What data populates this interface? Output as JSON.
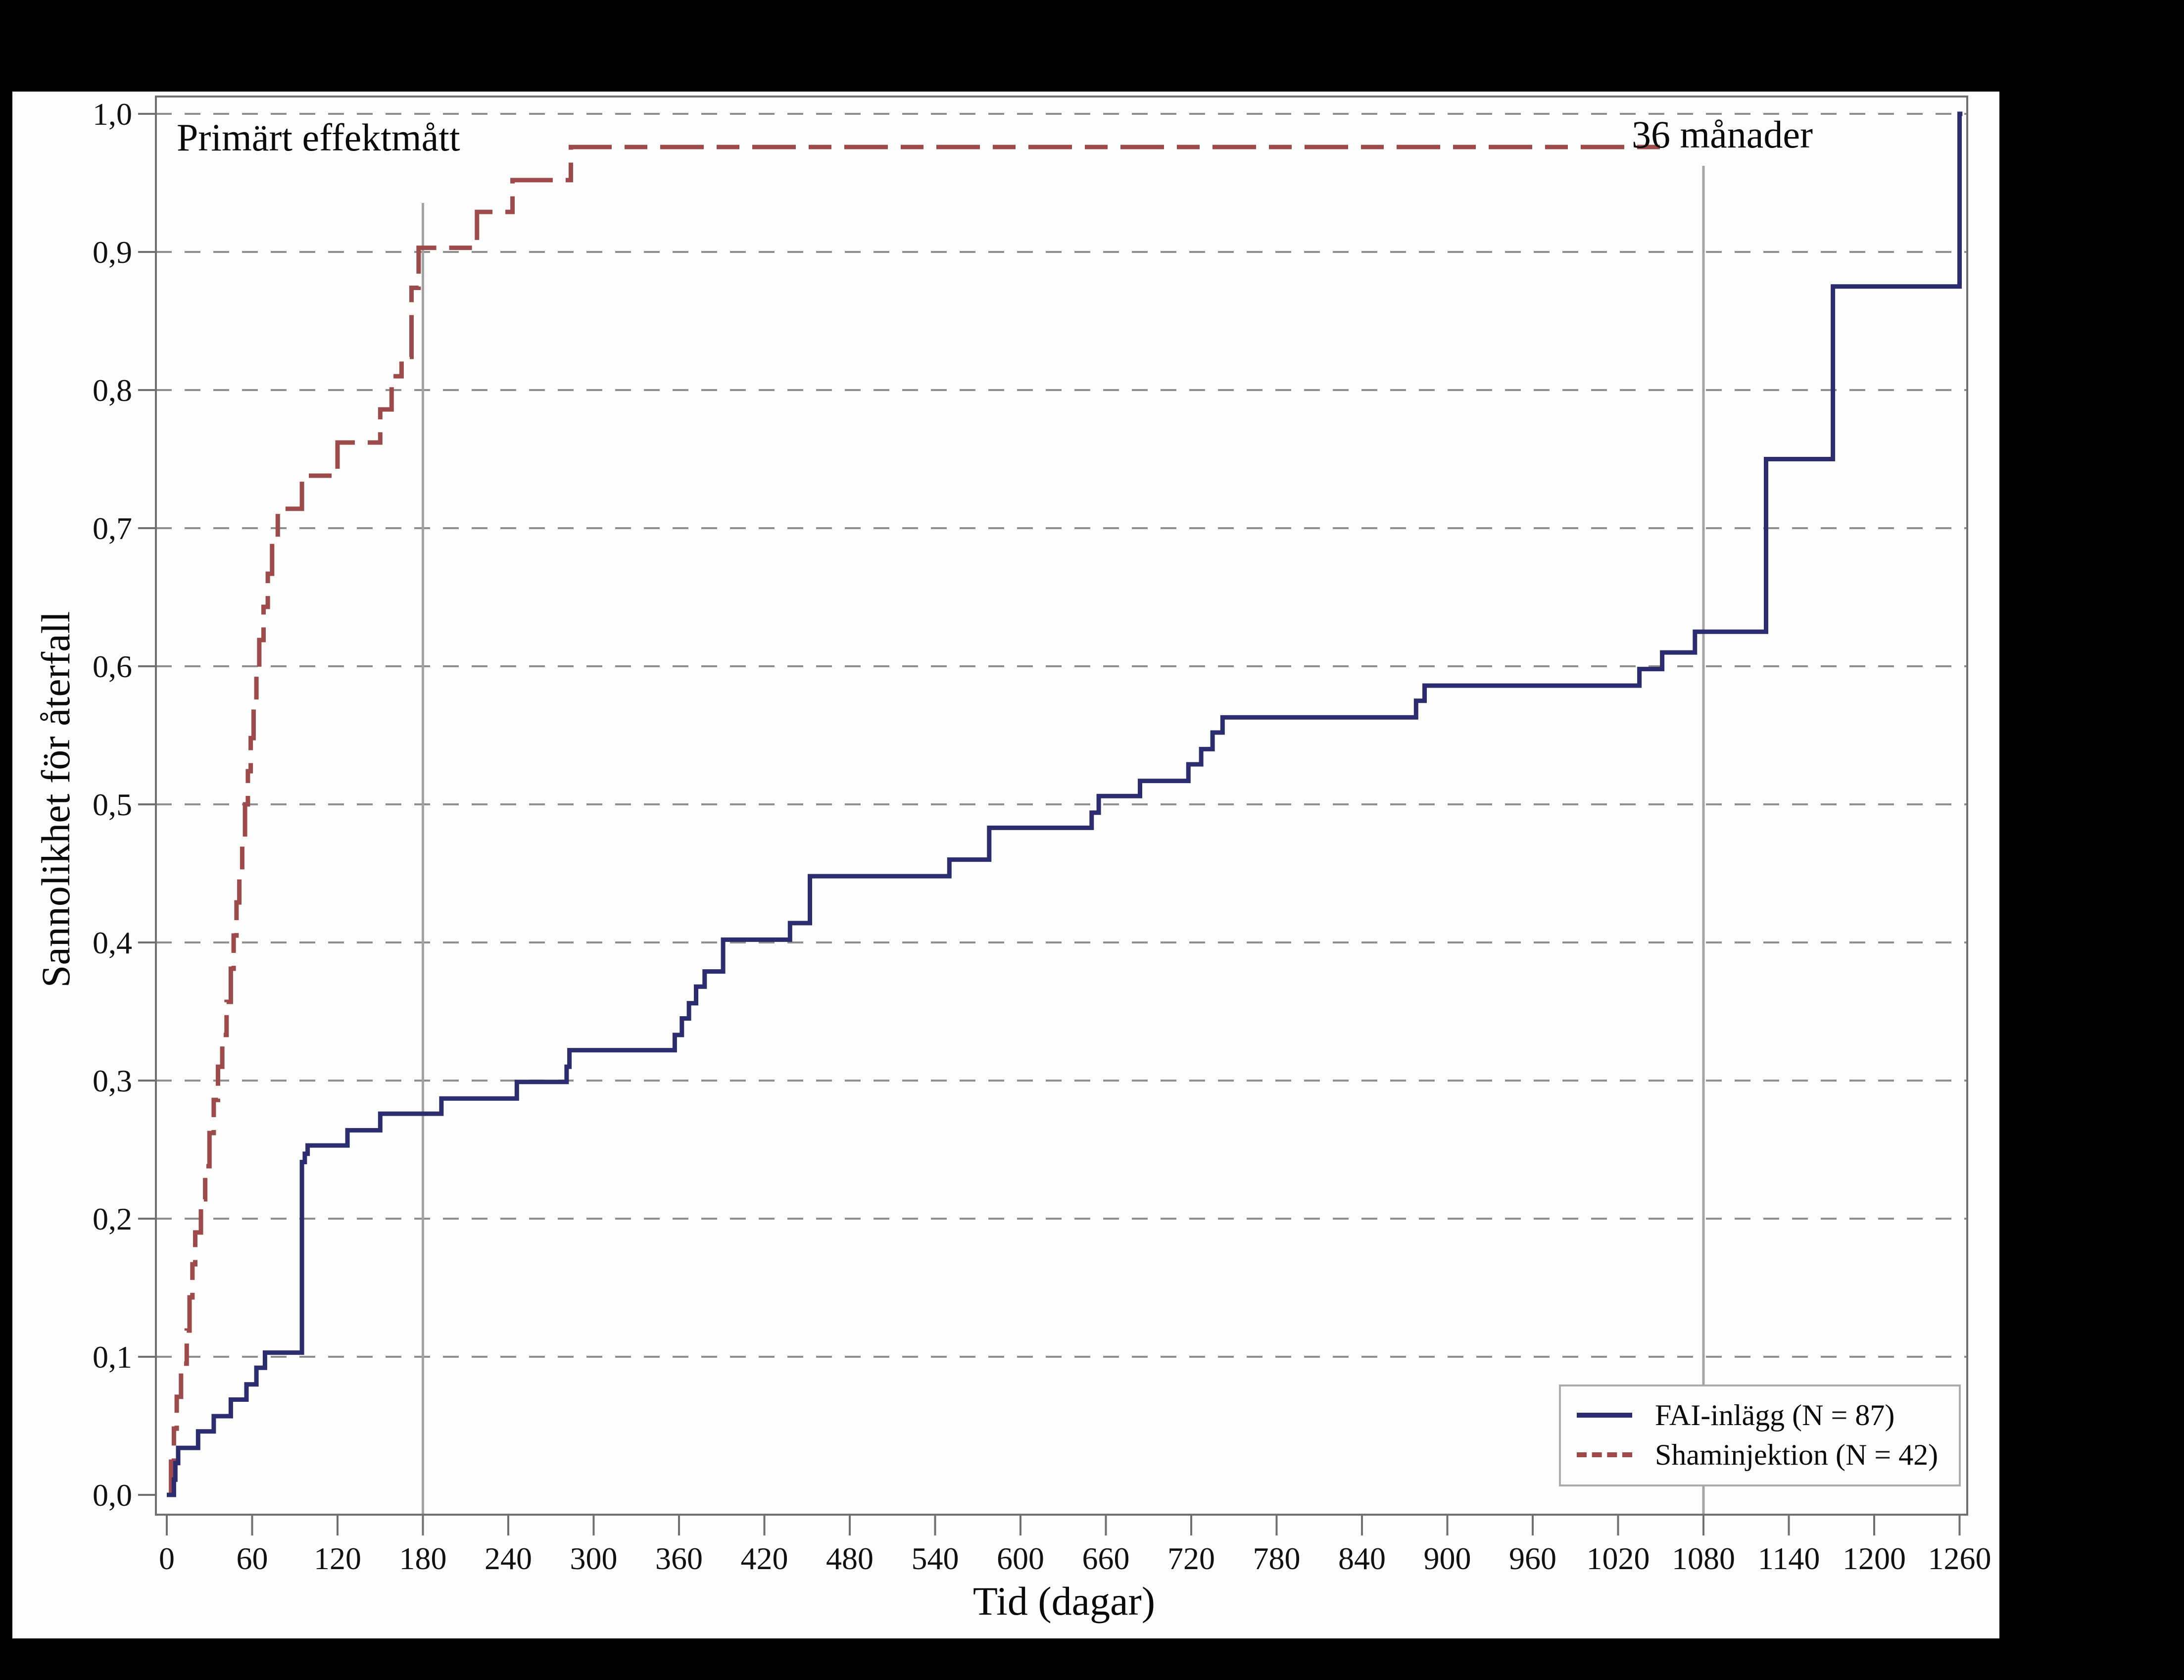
{
  "page": {
    "background": "#000000",
    "panel_background": "#fdfdfd"
  },
  "annotations": {
    "top_left": "Primärt effektmått",
    "top_right": "36 månader"
  },
  "axes": {
    "x": {
      "label": "Tid (dagar)",
      "range": [
        0,
        1260
      ],
      "ticks": [
        0,
        60,
        120,
        180,
        240,
        300,
        360,
        420,
        480,
        540,
        600,
        660,
        720,
        780,
        840,
        900,
        960,
        1020,
        1080,
        1140,
        1200,
        1260
      ]
    },
    "y": {
      "label": "Sannolikhet för återfall",
      "range": [
        0,
        1
      ],
      "tick_values": [
        0,
        0.1,
        0.2,
        0.3,
        0.4,
        0.5,
        0.6,
        0.7,
        0.8,
        0.9,
        1.0
      ],
      "tick_labels": [
        "0,0",
        "0,1",
        "0,2",
        "0,3",
        "0,4",
        "0,5",
        "0,6",
        "0,7",
        "0,8",
        "0,9",
        "1,0"
      ]
    }
  },
  "legend": {
    "items": [
      {
        "label": "FAI-inlägg (N = 87)",
        "color": "#2b2d6e",
        "style": "solid"
      },
      {
        "label": "Shaminjektion (N = 42)",
        "color": "#9d4a4a",
        "style": "dashed"
      }
    ]
  },
  "colors": {
    "fai_curve": "#2b2d6e",
    "sham_curve": "#9d4a4a",
    "gridline": "#8f8f8f",
    "reference_line": "#a3a3a3",
    "frame": "#707070",
    "text": "#111111"
  },
  "chart_data": {
    "type": "line",
    "subtype": "kaplan-meier-step-cumulative-incidence",
    "title": "Primärt effektmått",
    "xlabel": "Tid (dagar)",
    "ylabel": "Sannolikhet för återfall",
    "xlim": [
      0,
      1260
    ],
    "ylim": [
      0,
      1.0
    ],
    "grid": "horizontal-dashed-every-0.1",
    "legend_position": "lower-right",
    "reference_lines": [
      {
        "axis": "x",
        "value": 180,
        "style": "solid-gray"
      },
      {
        "axis": "x",
        "value": 1080,
        "style": "solid-gray",
        "annotation": "36 månader"
      }
    ],
    "series": [
      {
        "name": "Shaminjektion (N = 42)",
        "color": "#9d4a4a",
        "line_style": "dashed",
        "end_day": 1055,
        "points": [
          [
            0,
            0
          ],
          [
            3,
            0.024
          ],
          [
            5,
            0.048
          ],
          [
            7,
            0.071
          ],
          [
            10,
            0.095
          ],
          [
            14,
            0.119
          ],
          [
            16,
            0.143
          ],
          [
            18,
            0.167
          ],
          [
            20,
            0.19
          ],
          [
            24,
            0.214
          ],
          [
            27,
            0.238
          ],
          [
            30,
            0.262
          ],
          [
            33,
            0.286
          ],
          [
            36,
            0.31
          ],
          [
            39,
            0.333
          ],
          [
            42,
            0.357
          ],
          [
            45,
            0.381
          ],
          [
            47,
            0.405
          ],
          [
            49,
            0.429
          ],
          [
            51,
            0.452
          ],
          [
            53,
            0.476
          ],
          [
            55,
            0.5
          ],
          [
            57,
            0.524
          ],
          [
            59,
            0.548
          ],
          [
            61,
            0.571
          ],
          [
            63,
            0.595
          ],
          [
            65,
            0.619
          ],
          [
            68,
            0.643
          ],
          [
            71,
            0.667
          ],
          [
            74,
            0.69
          ],
          [
            78,
            0.714
          ],
          [
            95,
            0.738
          ],
          [
            120,
            0.762
          ],
          [
            150,
            0.786
          ],
          [
            158,
            0.81
          ],
          [
            165,
            0.824
          ],
          [
            172,
            0.874
          ],
          [
            177,
            0.903
          ],
          [
            218,
            0.929
          ],
          [
            243,
            0.952
          ],
          [
            284,
            0.976
          ]
        ]
      },
      {
        "name": "FAI-inlägg (N = 87)",
        "color": "#2b2d6e",
        "line_style": "solid",
        "end_day": 1262,
        "points": [
          [
            0,
            0
          ],
          [
            5,
            0.011
          ],
          [
            6,
            0.023
          ],
          [
            8,
            0.034
          ],
          [
            22,
            0.046
          ],
          [
            33,
            0.057
          ],
          [
            45,
            0.069
          ],
          [
            56,
            0.08
          ],
          [
            63,
            0.092
          ],
          [
            69,
            0.103
          ],
          [
            95,
            0.241
          ],
          [
            97,
            0.247
          ],
          [
            99,
            0.253
          ],
          [
            127,
            0.264
          ],
          [
            150,
            0.276
          ],
          [
            193,
            0.287
          ],
          [
            246,
            0.299
          ],
          [
            281,
            0.31
          ],
          [
            283,
            0.322
          ],
          [
            357,
            0.333
          ],
          [
            362,
            0.345
          ],
          [
            367,
            0.356
          ],
          [
            372,
            0.368
          ],
          [
            378,
            0.379
          ],
          [
            391,
            0.402
          ],
          [
            438,
            0.414
          ],
          [
            452,
            0.448
          ],
          [
            550,
            0.46
          ],
          [
            578,
            0.483
          ],
          [
            650,
            0.494
          ],
          [
            655,
            0.506
          ],
          [
            684,
            0.517
          ],
          [
            718,
            0.529
          ],
          [
            727,
            0.54
          ],
          [
            735,
            0.552
          ],
          [
            742,
            0.563
          ],
          [
            878,
            0.575
          ],
          [
            884,
            0.586
          ],
          [
            1035,
            0.598
          ],
          [
            1051,
            0.61
          ],
          [
            1074,
            0.625
          ],
          [
            1124,
            0.75
          ],
          [
            1171,
            0.875
          ],
          [
            1260,
            1.0
          ]
        ]
      }
    ]
  }
}
